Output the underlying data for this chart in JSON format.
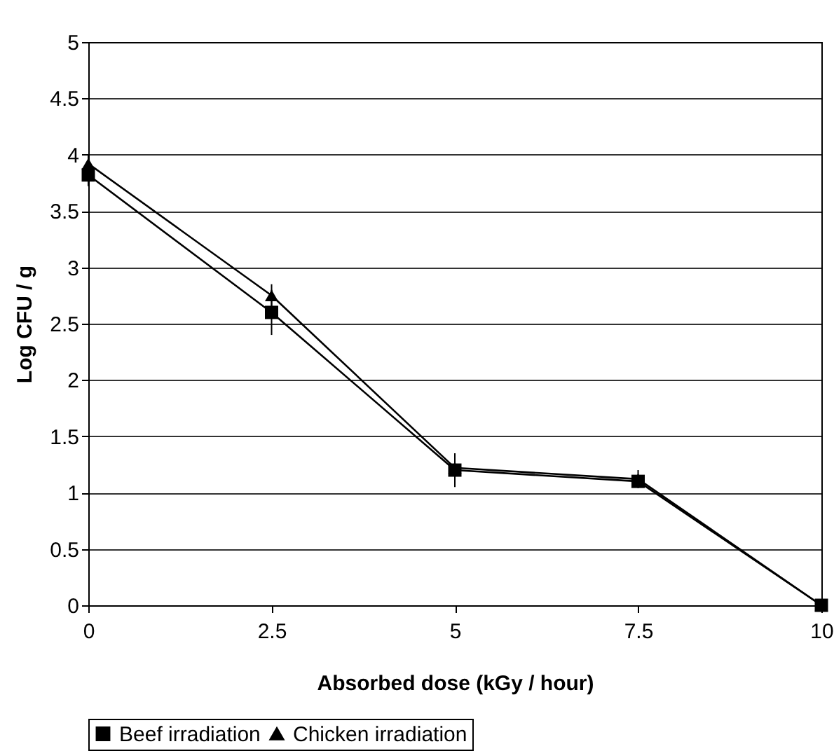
{
  "chart_data": {
    "type": "line",
    "xlabel": "Absorbed dose  (kGy / hour)",
    "ylabel": "Log CFU / g",
    "x": [
      0,
      2.5,
      5,
      7.5,
      10
    ],
    "series": [
      {
        "name": "Beef irradiation",
        "color": "#000000",
        "marker": "square",
        "values": [
          3.82,
          2.6,
          1.2,
          1.1,
          0
        ],
        "errors": [
          0.1,
          0.2,
          0.15,
          0.05,
          null
        ]
      },
      {
        "name": "Chicken irradiation",
        "color": "#000000",
        "marker": "triangle",
        "values": [
          3.92,
          2.75,
          1.22,
          1.12,
          0
        ],
        "errors": [
          0.08,
          0.1,
          0.05,
          0.08,
          null
        ]
      }
    ],
    "xlim": [
      0,
      10
    ],
    "xticks": [
      0,
      2.5,
      5,
      7.5,
      10
    ],
    "ylim": [
      0,
      5
    ],
    "yticks": [
      0,
      0.5,
      1,
      1.5,
      2,
      2.5,
      3,
      3.5,
      4,
      4.5,
      5
    ],
    "grid": "y",
    "legend": "bottom",
    "line_style": "solid"
  }
}
